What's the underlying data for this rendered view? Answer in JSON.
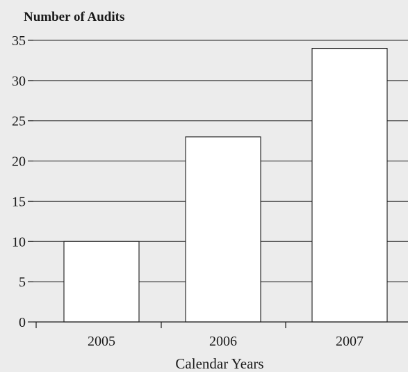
{
  "chart_data": {
    "type": "bar",
    "title": "",
    "ylabel": "Number of Audits",
    "xlabel": "Calendar Years",
    "categories": [
      "2005",
      "2006",
      "2007"
    ],
    "values": [
      10,
      23,
      34
    ],
    "ylim": [
      0,
      35
    ],
    "yticks": [
      0,
      5,
      10,
      15,
      20,
      25,
      30,
      35
    ],
    "grid": true,
    "legend": "none",
    "colors": {
      "background": "#ececec",
      "bar_fill": "#ffffff",
      "line": "#1a1a1a"
    }
  }
}
